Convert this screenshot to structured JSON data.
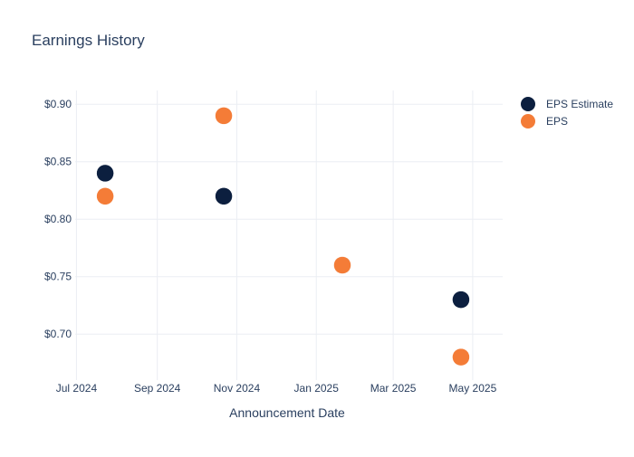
{
  "chart_data": {
    "type": "scatter",
    "title": "Earnings History",
    "xlabel": "Announcement Date",
    "ylabel": "",
    "x_ticks": [
      "Jul 2024",
      "Sep 2024",
      "Nov 2024",
      "Jan 2025",
      "Mar 2025",
      "May 2025"
    ],
    "y_ticks": [
      "$0.70",
      "$0.75",
      "$0.80",
      "$0.85",
      "$0.90"
    ],
    "ylim": [
      0.66,
      0.912
    ],
    "xlim": [
      "2024-06-30",
      "2025-05-24"
    ],
    "grid": true,
    "legend_position": "top-right",
    "x": [
      "2024-07-23",
      "2024-10-22",
      "2025-01-21",
      "2025-04-22"
    ],
    "series": [
      {
        "name": "EPS Estimate",
        "color": "#0c1f3f",
        "values": [
          0.84,
          0.82,
          0.76,
          0.73
        ]
      },
      {
        "name": "EPS",
        "color": "#f47c37",
        "values": [
          0.82,
          0.89,
          0.76,
          0.68
        ]
      }
    ]
  }
}
